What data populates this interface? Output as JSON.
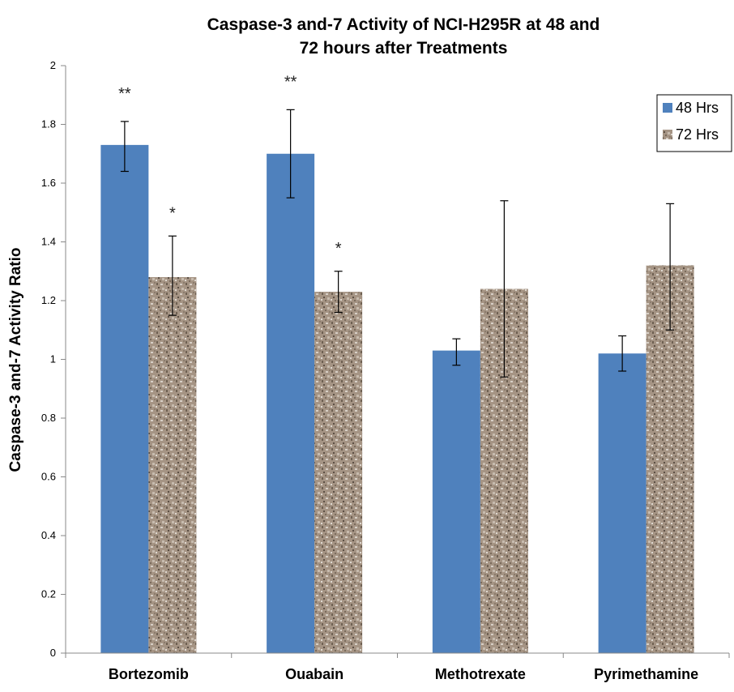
{
  "chart_data": {
    "type": "bar",
    "title_lines": [
      "Caspase-3 and-7 Activity of NCI-H295R at 48 and",
      "72 hours after Treatments"
    ],
    "ylabel": "Caspase-3 and-7 Activity Ratio",
    "xlabel": "",
    "ylim": [
      0,
      2
    ],
    "yticks": [
      "0",
      "0.2",
      "0.4",
      "0.6",
      "0.8",
      "1",
      "1.2",
      "1.4",
      "1.6",
      "1.8",
      "2"
    ],
    "grid": false,
    "legend_position": "top-right",
    "categories": [
      "Bortezomib",
      "Ouabain",
      "Methotrexate",
      "Pyrimethamine"
    ],
    "series": [
      {
        "name": "48 Hrs",
        "color": "#4f81bd",
        "values": [
          1.73,
          1.7,
          1.03,
          1.02
        ],
        "err_low": [
          1.64,
          1.55,
          0.98,
          0.96
        ],
        "err_high": [
          1.81,
          1.85,
          1.07,
          1.08
        ],
        "annotations": [
          "**",
          "**",
          "",
          ""
        ]
      },
      {
        "name": "72 Hrs",
        "color": "#a59484",
        "texture": "granite",
        "values": [
          1.28,
          1.23,
          1.24,
          1.32
        ],
        "err_low": [
          1.15,
          1.16,
          0.94,
          1.1
        ],
        "err_high": [
          1.42,
          1.3,
          1.54,
          1.53
        ],
        "annotations": [
          "*",
          "*",
          "",
          ""
        ]
      }
    ]
  }
}
